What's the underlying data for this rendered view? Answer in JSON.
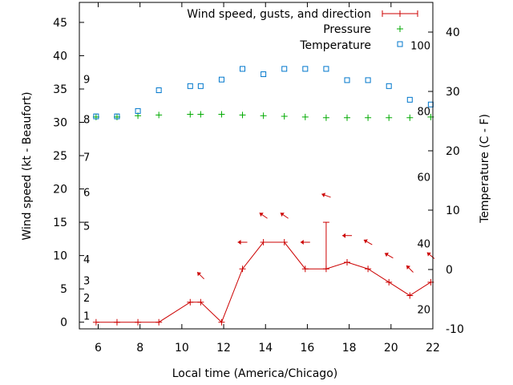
{
  "chart_data": {
    "type": "line",
    "xlabel": "Local time (America/Chicago)",
    "ylabel_left": "Wind speed (kt - Beaufort)",
    "ylabel_right": "Temperature (C - F)",
    "xlim": [
      5.1,
      22
    ],
    "ylim_left": [
      -1,
      48
    ],
    "ylim_right": [
      -10,
      45
    ],
    "x_ticks": [
      "6",
      "8",
      "10",
      "12",
      "14",
      "16",
      "18",
      "20",
      "22"
    ],
    "x_tick_values": [
      6,
      8,
      10,
      12,
      14,
      16,
      18,
      20,
      22
    ],
    "y_left_ticks": [
      "0",
      "5",
      "10",
      "15",
      "20",
      "25",
      "30",
      "35",
      "40",
      "45"
    ],
    "y_left_tick_values": [
      0,
      5,
      10,
      15,
      20,
      25,
      30,
      35,
      40,
      45
    ],
    "y_right_ticks": [
      "-10",
      "0",
      "10",
      "20",
      "30",
      "40"
    ],
    "y_right_tick_values": [
      -10,
      0,
      10,
      20,
      30,
      40
    ],
    "beaufort_labels": [
      {
        "text": "1",
        "kt": 1
      },
      {
        "text": "2",
        "kt": 3.7
      },
      {
        "text": "3",
        "kt": 6.3
      },
      {
        "text": "4",
        "kt": 9.5
      },
      {
        "text": "5",
        "kt": 14.5
      },
      {
        "text": "6",
        "kt": 19.5
      },
      {
        "text": "7",
        "kt": 24.8
      },
      {
        "text": "8",
        "kt": 30.5
      },
      {
        "text": "9",
        "kt": 36.5
      }
    ],
    "fahrenheit_labels": [
      {
        "text": "20",
        "c": -6.7
      },
      {
        "text": "40",
        "c": 4.4
      },
      {
        "text": "60",
        "c": 15.6
      },
      {
        "text": "80",
        "c": 26.7
      },
      {
        "text": "100",
        "c": 37.8
      }
    ],
    "legend": [
      {
        "label": "Wind speed, gusts, and direction",
        "color": "#cc0000",
        "marker": "line-plus"
      },
      {
        "label": "Pressure",
        "color": "#00aa00",
        "marker": "plus"
      },
      {
        "label": "Temperature",
        "color": "#0077cc",
        "marker": "square"
      }
    ],
    "series": [
      {
        "name": "Wind speed, gusts, and direction",
        "color": "#cc0000",
        "x": [
          5.9,
          6.9,
          7.9,
          8.9,
          10.4,
          10.9,
          11.9,
          12.9,
          13.9,
          14.9,
          15.9,
          16.9,
          17.9,
          18.9,
          19.9,
          20.9,
          21.9
        ],
        "y": [
          0,
          0,
          0,
          0,
          3,
          3,
          0,
          8,
          12,
          12,
          8,
          8,
          9,
          8,
          6,
          4,
          6
        ]
      },
      {
        "name": "Gusts",
        "color": "#cc0000",
        "gusts": [
          {
            "x": 16.9,
            "base": 8,
            "top": 15
          }
        ]
      },
      {
        "name": "Direction",
        "color": "#cc0000",
        "arrows": [
          {
            "x": 10.9,
            "kt": 7,
            "dir": 135
          },
          {
            "x": 12.9,
            "kt": 12,
            "dir": 90
          },
          {
            "x": 13.9,
            "kt": 16,
            "dir": 125
          },
          {
            "x": 14.9,
            "kt": 16,
            "dir": 125
          },
          {
            "x": 15.9,
            "kt": 12,
            "dir": 90
          },
          {
            "x": 16.9,
            "kt": 19,
            "dir": 110
          },
          {
            "x": 17.9,
            "kt": 13,
            "dir": 90
          },
          {
            "x": 18.9,
            "kt": 12,
            "dir": 120
          },
          {
            "x": 19.9,
            "kt": 10,
            "dir": 120
          },
          {
            "x": 20.9,
            "kt": 8,
            "dir": 135
          },
          {
            "x": 21.9,
            "kt": 10,
            "dir": 130
          }
        ]
      },
      {
        "name": "Pressure",
        "color": "#00aa00",
        "x": [
          5.9,
          6.9,
          7.9,
          8.9,
          10.4,
          10.9,
          11.9,
          12.9,
          13.9,
          14.9,
          15.9,
          16.9,
          17.9,
          18.9,
          19.9,
          20.9,
          21.9
        ],
        "y": [
          30.8,
          30.8,
          31.0,
          31.1,
          31.2,
          31.2,
          31.2,
          31.1,
          31.0,
          30.9,
          30.8,
          30.7,
          30.7,
          30.7,
          30.7,
          30.7,
          30.8
        ]
      },
      {
        "name": "Temperature",
        "color": "#0077cc",
        "x": [
          5.9,
          6.9,
          7.9,
          8.9,
          10.4,
          10.9,
          11.9,
          12.9,
          13.9,
          14.9,
          15.9,
          16.9,
          17.9,
          18.9,
          19.9,
          20.9,
          21.9
        ],
        "y": [
          25.8,
          25.8,
          26.7,
          30.2,
          30.9,
          30.9,
          32.0,
          33.8,
          32.9,
          33.8,
          33.8,
          33.8,
          31.9,
          31.9,
          30.9,
          28.6,
          27.8
        ]
      }
    ]
  }
}
